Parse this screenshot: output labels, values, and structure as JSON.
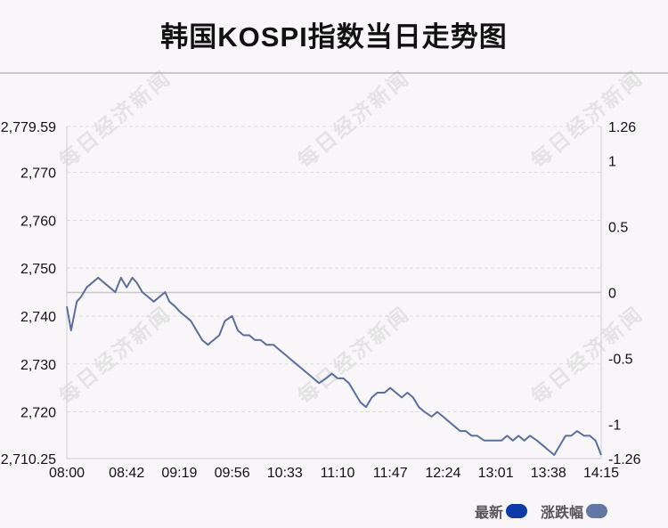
{
  "title": "韩国KOSPI指数当日走势图",
  "watermark_text": "每日经济新闻",
  "legend": [
    {
      "label": "最新",
      "color": "#0d3aa8"
    },
    {
      "label": "涨跌幅",
      "color": "#6277a3"
    }
  ],
  "colors": {
    "line": "#5a6f9c",
    "zero_line": "#c8c8c8",
    "grid": "#dddddd",
    "axis": "#cfcfcf"
  },
  "chart_data": {
    "type": "line",
    "title": "韩国KOSPI指数当日走势图",
    "xlabel": "",
    "ylabel": "",
    "x_ticks": [
      "08:00",
      "08:42",
      "09:19",
      "09:56",
      "10:33",
      "11:10",
      "11:47",
      "12:24",
      "13:01",
      "13:38",
      "14:15"
    ],
    "y_left_ticks": [
      "2,779.59",
      "2,770",
      "2,760",
      "2,750",
      "2,740",
      "2,730",
      "2,720",
      "2,710.25"
    ],
    "y_left_values": [
      2779.59,
      2770,
      2760,
      2750,
      2740,
      2730,
      2720,
      2710.25
    ],
    "y_right_ticks": [
      "1.26",
      "1",
      "0.5",
      "0",
      "-0.5",
      "-1",
      "-1.26"
    ],
    "y_right_values": [
      1.26,
      1,
      0.5,
      0,
      -0.5,
      -1,
      -1.26
    ],
    "ylim_left": [
      2710.25,
      2779.59
    ],
    "ylim_right": [
      -1.26,
      1.26
    ],
    "reference_close": 2744.92,
    "grid": true,
    "legend_position": "bottom-right",
    "series": [
      {
        "name": "最新",
        "x": [
          "08:00",
          "08:03",
          "08:05",
          "08:07",
          "08:10",
          "08:14",
          "08:18",
          "08:22",
          "08:26",
          "08:30",
          "08:34",
          "08:38",
          "08:42",
          "08:46",
          "08:49",
          "08:53",
          "08:57",
          "09:01",
          "09:05",
          "09:09",
          "09:12",
          "09:16",
          "09:19",
          "09:23",
          "09:27",
          "09:31",
          "09:35",
          "09:39",
          "09:43",
          "09:47",
          "09:51",
          "09:56",
          "10:00",
          "10:04",
          "10:08",
          "10:12",
          "10:16",
          "10:20",
          "10:25",
          "10:29",
          "10:33",
          "10:37",
          "10:41",
          "10:45",
          "10:49",
          "10:53",
          "10:57",
          "11:02",
          "11:06",
          "11:10",
          "11:14",
          "11:18",
          "11:22",
          "11:26",
          "11:30",
          "11:34",
          "11:38",
          "11:43",
          "11:47",
          "11:51",
          "11:55",
          "11:59",
          "12:03",
          "12:07",
          "12:11",
          "12:16",
          "12:20",
          "12:24",
          "12:28",
          "12:32",
          "12:36",
          "12:40",
          "12:44",
          "12:48",
          "12:53",
          "12:57",
          "13:01",
          "13:05",
          "13:09",
          "13:13",
          "13:17",
          "13:21",
          "13:25",
          "13:30",
          "13:34",
          "13:38",
          "13:42",
          "13:46",
          "13:50",
          "13:54",
          "13:58",
          "14:03",
          "14:07",
          "14:11",
          "14:15"
        ],
        "values": [
          2742,
          2737,
          2740,
          2743,
          2744,
          2746,
          2747,
          2748,
          2747,
          2746,
          2745,
          2748,
          2746,
          2748,
          2747,
          2745,
          2744,
          2743,
          2744,
          2745,
          2743,
          2742,
          2741,
          2740,
          2739,
          2737,
          2735,
          2734,
          2735,
          2736,
          2739,
          2740,
          2737,
          2736,
          2736,
          2735,
          2735,
          2734,
          2734,
          2733,
          2732,
          2731,
          2730,
          2729,
          2728,
          2727,
          2726,
          2727,
          2728,
          2727,
          2727,
          2726,
          2724,
          2722,
          2721,
          2723,
          2724,
          2724,
          2725,
          2724,
          2723,
          2724,
          2723,
          2721,
          2720,
          2719,
          2720,
          2719,
          2718,
          2717,
          2716,
          2716,
          2715,
          2715,
          2714,
          2714,
          2714,
          2714,
          2715,
          2714,
          2715,
          2714,
          2715,
          2714,
          2713,
          2712,
          2711,
          2713,
          2715,
          2715,
          2716,
          2715,
          2715,
          2714,
          2711
        ]
      }
    ]
  }
}
